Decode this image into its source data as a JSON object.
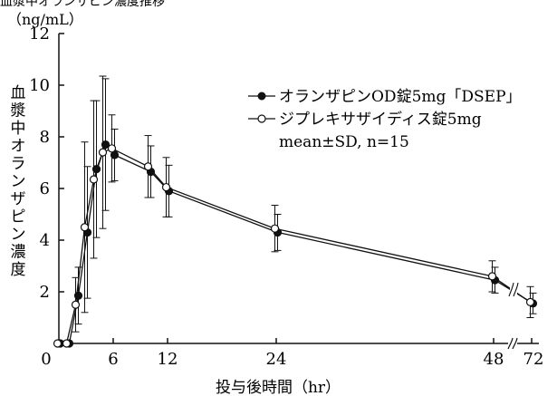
{
  "chart_data": {
    "type": "line",
    "top_cropped_text": "血漿中オランザピン濃度推移",
    "y_unit": "（ng/mL）",
    "ylabel": "血漿中オランザピン濃度",
    "xlabel": "投与後時間（hr）",
    "xticks": [
      "0",
      "6",
      "12",
      "24",
      "48",
      "72"
    ],
    "yticks": [
      "2",
      "4",
      "6",
      "8",
      "10",
      "12"
    ],
    "ylim": [
      0,
      12
    ],
    "axis_break_between": [
      48,
      72
    ],
    "stats_note": "mean±SD, n=15",
    "series": [
      {
        "name": "オランザピンOD錠5mg「DSEP」",
        "marker": "filled-circle",
        "color": "#111111",
        "points": [
          {
            "x": 0,
            "y": 0,
            "sd": 0
          },
          {
            "x": 1,
            "y": 0,
            "sd": 0
          },
          {
            "x": 2,
            "y": 1.85,
            "sd": 1.1
          },
          {
            "x": 3,
            "y": 4.3,
            "sd": 2.55
          },
          {
            "x": 4,
            "y": 6.75,
            "sd": 2.65
          },
          {
            "x": 5,
            "y": 7.7,
            "sd": 2.55
          },
          {
            "x": 6,
            "y": 7.3,
            "sd": 1.0
          },
          {
            "x": 10,
            "y": 6.65,
            "sd": 1.0
          },
          {
            "x": 12,
            "y": 5.9,
            "sd": 1.0
          },
          {
            "x": 24,
            "y": 4.3,
            "sd": 0.7
          },
          {
            "x": 48,
            "y": 2.45,
            "sd": 0.5
          },
          {
            "x": 72,
            "y": 1.55,
            "sd": 0.4
          }
        ]
      },
      {
        "name": "ジプレキサザイディス錠5mg",
        "marker": "open-circle",
        "color": "#111111",
        "points": [
          {
            "x": 0,
            "y": 0,
            "sd": 0
          },
          {
            "x": 1,
            "y": 0,
            "sd": 0
          },
          {
            "x": 2,
            "y": 1.5,
            "sd": 1.05
          },
          {
            "x": 3,
            "y": 4.5,
            "sd": 3.3
          },
          {
            "x": 4,
            "y": 6.35,
            "sd": 3.05
          },
          {
            "x": 5,
            "y": 7.4,
            "sd": 2.95
          },
          {
            "x": 6,
            "y": 7.55,
            "sd": 1.3
          },
          {
            "x": 10,
            "y": 6.85,
            "sd": 1.2
          },
          {
            "x": 12,
            "y": 6.05,
            "sd": 1.15
          },
          {
            "x": 24,
            "y": 4.45,
            "sd": 0.9
          },
          {
            "x": 48,
            "y": 2.6,
            "sd": 0.6
          },
          {
            "x": 72,
            "y": 1.6,
            "sd": 0.6
          }
        ]
      }
    ]
  }
}
